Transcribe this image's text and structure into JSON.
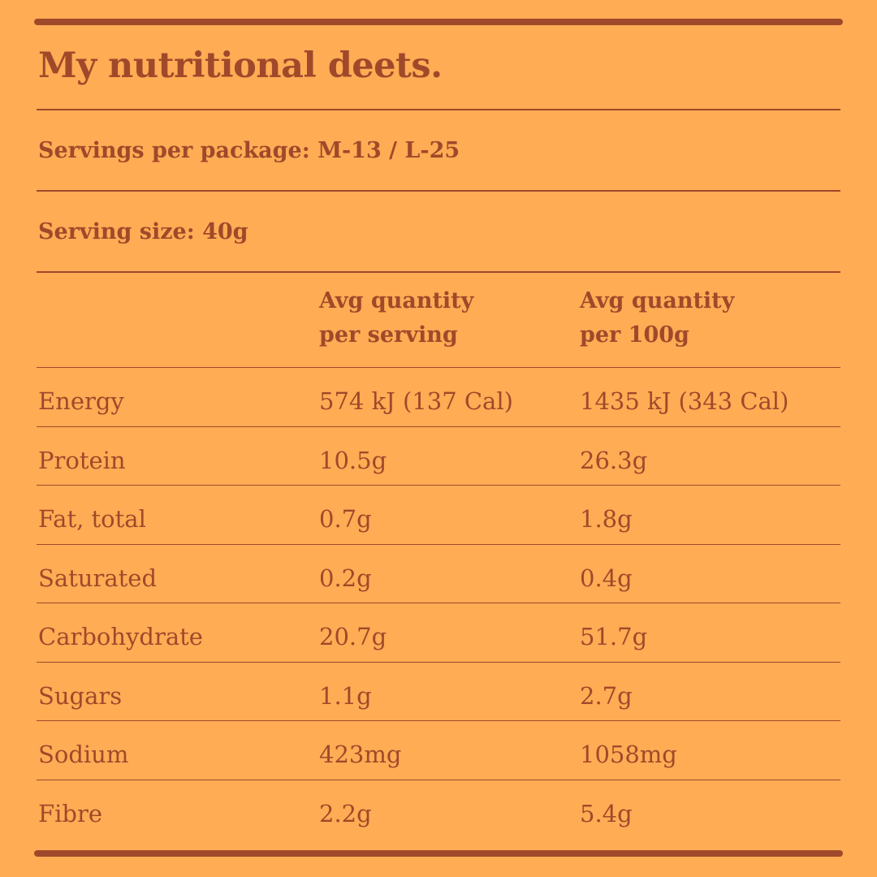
{
  "title": "My nutritional deets.",
  "servings_per_package": "Servings per package: M-13 / L-25",
  "serving_size": "Serving size: 40g",
  "columns": {
    "per_serving": [
      "Avg quantity",
      "per serving"
    ],
    "per_100g": [
      "Avg quantity",
      "per 100g"
    ]
  },
  "rows": [
    {
      "nutrient": "Energy",
      "per_serving": "574 kJ (137 Cal)",
      "per_100g": "1435 kJ (343 Cal)"
    },
    {
      "nutrient": "Protein",
      "per_serving": "10.5g",
      "per_100g": "26.3g"
    },
    {
      "nutrient": "Fat, total",
      "per_serving": "0.7g",
      "per_100g": "1.8g"
    },
    {
      "nutrient": "Saturated",
      "per_serving": "0.2g",
      "per_100g": "0.4g"
    },
    {
      "nutrient": "Carbohydrate",
      "per_serving": "20.7g",
      "per_100g": "51.7g"
    },
    {
      "nutrient": "Sugars",
      "per_serving": "1.1g",
      "per_100g": "2.7g"
    },
    {
      "nutrient": "Sodium",
      "per_serving": "423mg",
      "per_100g": "1058mg"
    },
    {
      "nutrient": "Fibre",
      "per_serving": "2.2g",
      "per_100g": "5.4g"
    }
  ],
  "colors": {
    "background": "#FFAC55",
    "ink": "#A0492A"
  }
}
